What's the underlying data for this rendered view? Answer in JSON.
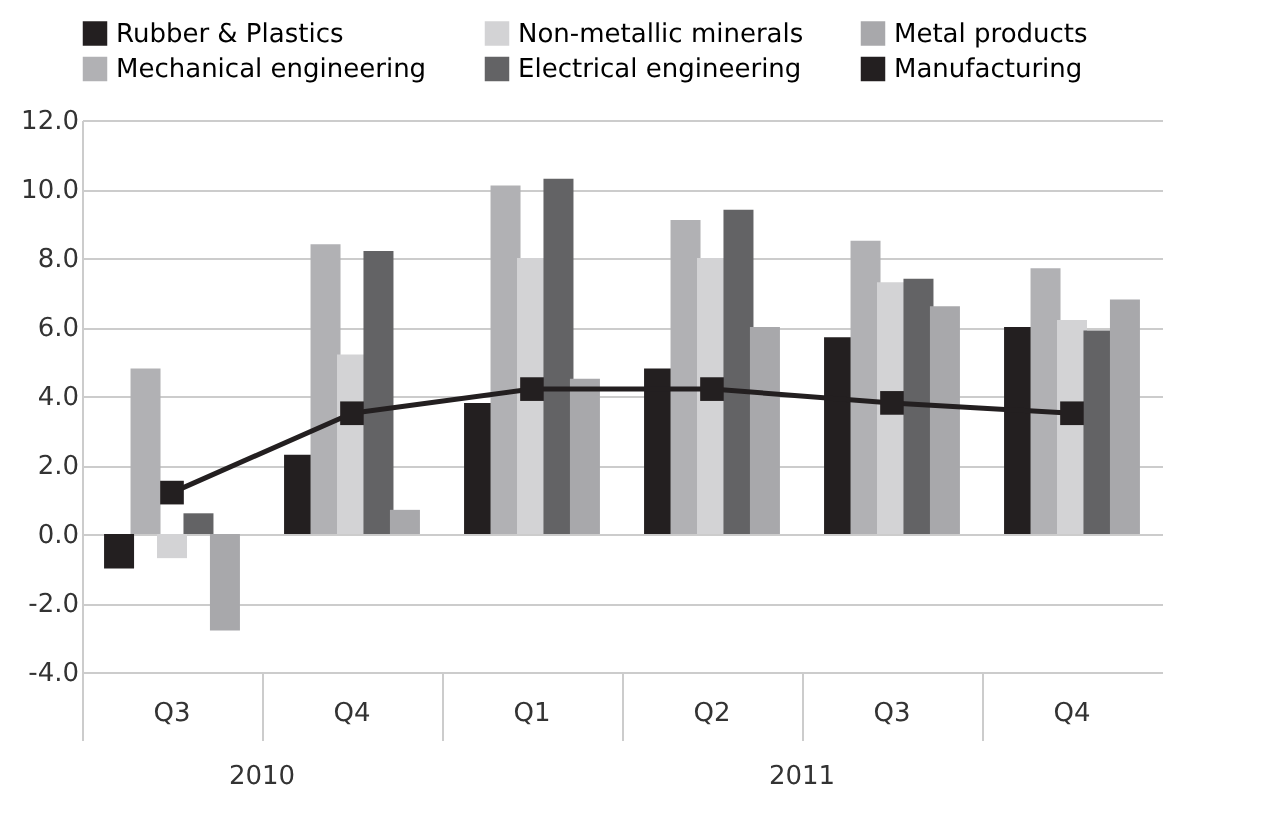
{
  "chart_data": {
    "type": "bar",
    "categories": [
      "Q3",
      "Q4",
      "Q1",
      "Q2",
      "Q3",
      "Q4"
    ],
    "series": [
      {
        "name": "Rubber & Plastics",
        "color": "#231f20",
        "values": [
          -1.0,
          2.3,
          3.8,
          4.8,
          5.7,
          6.0
        ]
      },
      {
        "name": "Mechanical engineering",
        "color": "#b1b1b4",
        "values": [
          4.8,
          8.4,
          10.1,
          9.1,
          8.5,
          7.7
        ]
      },
      {
        "name": "Non-metallic minerals",
        "color": "#d3d3d5",
        "values": [
          -0.7,
          5.2,
          8.0,
          8.0,
          7.3,
          6.2
        ]
      },
      {
        "name": "Electrical engineering",
        "color": "#636365",
        "values": [
          0.6,
          8.2,
          10.3,
          9.4,
          7.4,
          5.9
        ]
      },
      {
        "name": "Metal products",
        "color": "#a8a8ab",
        "values": [
          -2.8,
          0.7,
          4.5,
          6.0,
          6.6,
          6.8
        ]
      },
      {
        "name": "Manufacturing",
        "color": "#231f20",
        "type": "line",
        "marker": "square",
        "values": [
          1.2,
          3.5,
          4.2,
          4.2,
          3.8,
          3.5
        ]
      }
    ],
    "ylim": [
      -4,
      12
    ],
    "yticks": [
      {
        "value": -4,
        "label": "-4.0"
      },
      {
        "value": -2,
        "label": "-2.0"
      },
      {
        "value": 0,
        "label": "0.0"
      },
      {
        "value": 2,
        "label": "2.0"
      },
      {
        "value": 4,
        "label": "4.0"
      },
      {
        "value": 6,
        "label": "6.0"
      },
      {
        "value": 8,
        "label": "8.0"
      },
      {
        "value": 10,
        "label": "10.0"
      },
      {
        "value": 12,
        "label": "12.0"
      }
    ],
    "grid": "y",
    "legend": "top",
    "annotations": [
      "2010",
      "2011"
    ]
  }
}
